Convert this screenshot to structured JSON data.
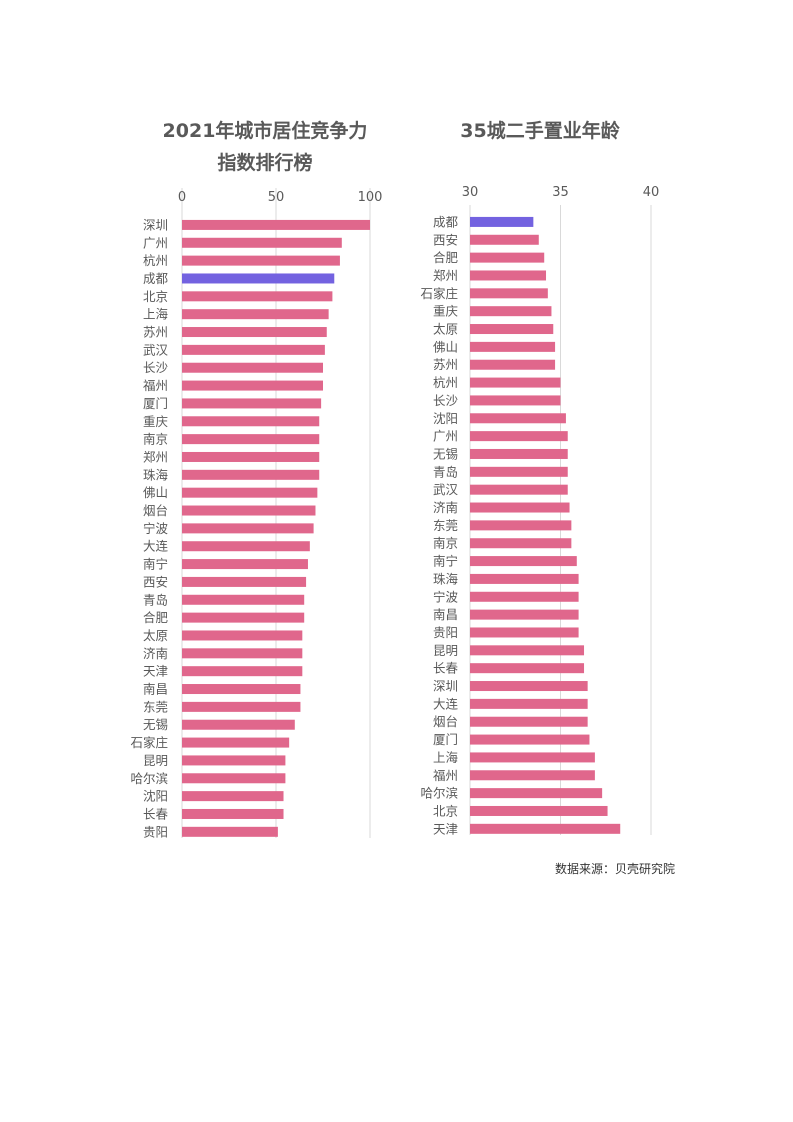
{
  "source": "数据来源：贝壳研究院",
  "colors": {
    "bar": "#e0678c",
    "highlight": "#7362e0",
    "grid": "#d9d9d9",
    "text": "#595959"
  },
  "chart_data": [
    {
      "type": "bar",
      "orientation": "horizontal",
      "title_line1": "2021年城市居住竞争力",
      "title_line2": "指数排行榜",
      "xlim": [
        0,
        100
      ],
      "xticks": [
        0,
        50,
        100
      ],
      "highlight": "成都",
      "categories": [
        "深圳",
        "广州",
        "杭州",
        "成都",
        "北京",
        "上海",
        "苏州",
        "武汉",
        "长沙",
        "福州",
        "厦门",
        "重庆",
        "南京",
        "郑州",
        "珠海",
        "佛山",
        "烟台",
        "宁波",
        "大连",
        "南宁",
        "西安",
        "青岛",
        "合肥",
        "太原",
        "济南",
        "天津",
        "南昌",
        "东莞",
        "无锡",
        "石家庄",
        "昆明",
        "哈尔滨",
        "沈阳",
        "长春",
        "贵阳"
      ],
      "values": [
        100,
        85,
        84,
        81,
        80,
        78,
        77,
        76,
        75,
        75,
        74,
        73,
        73,
        73,
        73,
        72,
        71,
        70,
        68,
        67,
        66,
        65,
        65,
        64,
        64,
        64,
        63,
        63,
        60,
        57,
        55,
        55,
        54,
        54,
        51
      ]
    },
    {
      "type": "bar",
      "orientation": "horizontal",
      "title": "35城二手置业年龄",
      "xlim": [
        30,
        40
      ],
      "xticks": [
        30,
        35,
        40
      ],
      "highlight": "成都",
      "categories": [
        "成都",
        "西安",
        "合肥",
        "郑州",
        "石家庄",
        "重庆",
        "太原",
        "佛山",
        "苏州",
        "杭州",
        "长沙",
        "沈阳",
        "广州",
        "无锡",
        "青岛",
        "武汉",
        "济南",
        "东莞",
        "南京",
        "南宁",
        "珠海",
        "宁波",
        "南昌",
        "贵阳",
        "昆明",
        "长春",
        "深圳",
        "大连",
        "烟台",
        "厦门",
        "上海",
        "福州",
        "哈尔滨",
        "北京",
        "天津"
      ],
      "values": [
        33.5,
        33.8,
        34.1,
        34.2,
        34.3,
        34.5,
        34.6,
        34.7,
        34.7,
        35.0,
        35.0,
        35.3,
        35.4,
        35.4,
        35.4,
        35.4,
        35.5,
        35.6,
        35.6,
        35.9,
        36.0,
        36.0,
        36.0,
        36.0,
        36.3,
        36.3,
        36.5,
        36.5,
        36.5,
        36.6,
        36.9,
        36.9,
        37.3,
        37.6,
        38.3
      ]
    }
  ]
}
